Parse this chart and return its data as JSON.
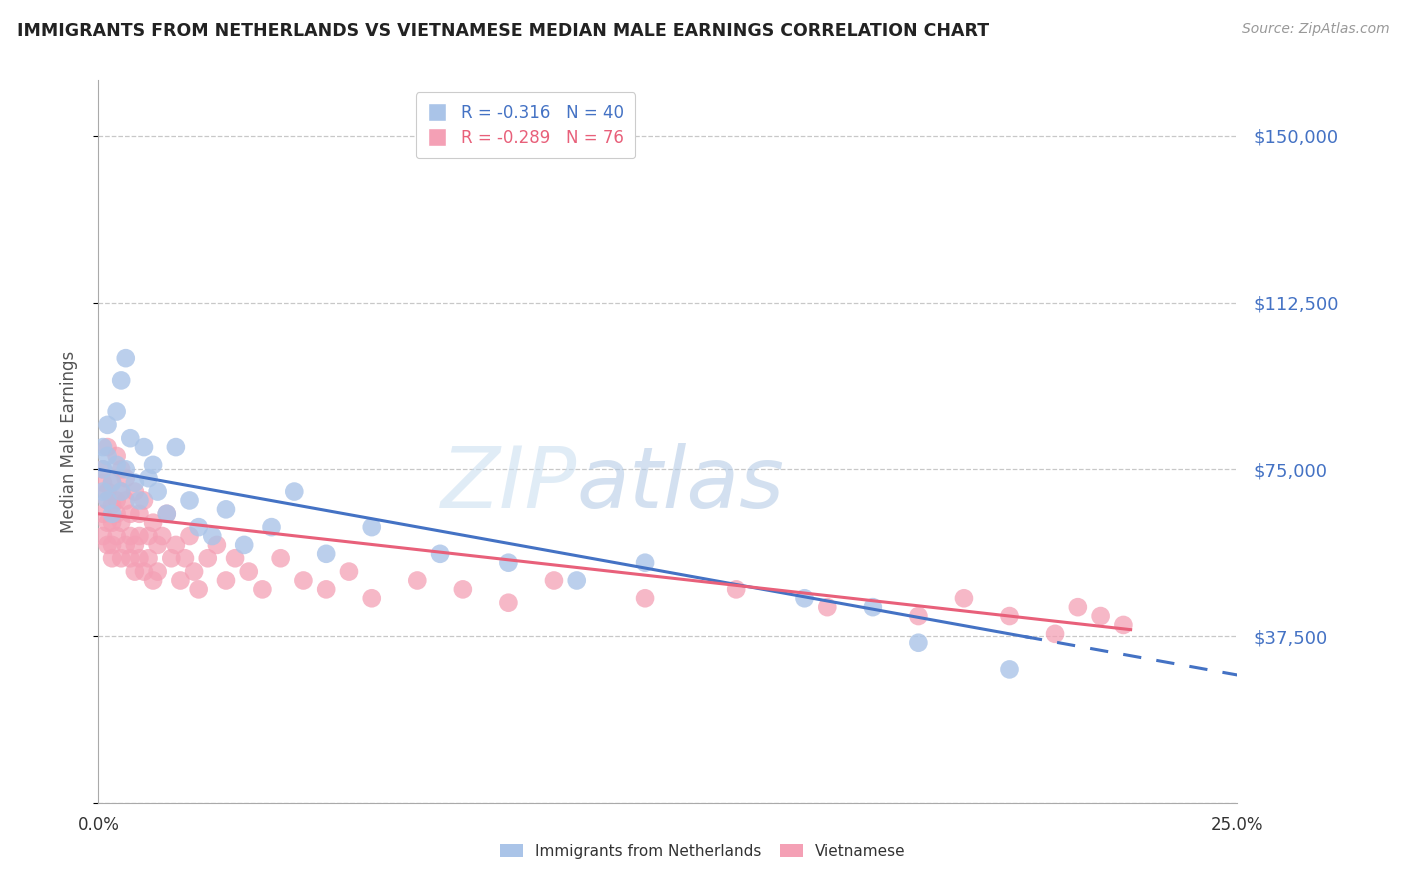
{
  "title": "IMMIGRANTS FROM NETHERLANDS VS VIETNAMESE MEDIAN MALE EARNINGS CORRELATION CHART",
  "source": "Source: ZipAtlas.com",
  "xlabel": "",
  "ylabel": "Median Male Earnings",
  "xlim": [
    0.0,
    0.25
  ],
  "ylim": [
    0,
    162500
  ],
  "yticks": [
    0,
    37500,
    75000,
    112500,
    150000
  ],
  "ytick_labels": [
    "",
    "$37,500",
    "$75,000",
    "$112,500",
    "$150,000"
  ],
  "xticks": [
    0.0,
    0.05,
    0.1,
    0.15,
    0.2,
    0.25
  ],
  "xtick_labels": [
    "0.0%",
    "",
    "",
    "",
    "",
    "25.0%"
  ],
  "watermark_zip": "ZIP",
  "watermark_atlas": "atlas",
  "background_color": "#ffffff",
  "grid_color": "#c8c8c8",
  "netherlands_color": "#aac4e8",
  "vietnamese_color": "#f4a0b5",
  "netherlands_line_color": "#4472c4",
  "vietnamese_line_color": "#e8607a",
  "netherlands_R": -0.316,
  "netherlands_N": 40,
  "vietnamese_R": -0.289,
  "vietnamese_N": 76,
  "legend_label_netherlands": "Immigrants from Netherlands",
  "legend_label_vietnamese": "Vietnamese",
  "title_color": "#222222",
  "axis_label_color": "#555555",
  "ytick_color": "#4472c4",
  "xtick_color": "#333333",
  "nl_intercept": 75000,
  "nl_slope": -185000,
  "vn_intercept": 65000,
  "vn_slope": -115000,
  "netherlands_x": [
    0.001,
    0.001,
    0.001,
    0.002,
    0.002,
    0.002,
    0.003,
    0.003,
    0.004,
    0.004,
    0.005,
    0.005,
    0.006,
    0.006,
    0.007,
    0.008,
    0.009,
    0.01,
    0.011,
    0.012,
    0.013,
    0.015,
    0.017,
    0.02,
    0.022,
    0.025,
    0.028,
    0.032,
    0.038,
    0.043,
    0.05,
    0.06,
    0.075,
    0.09,
    0.105,
    0.12,
    0.155,
    0.17,
    0.18,
    0.2
  ],
  "netherlands_y": [
    75000,
    80000,
    70000,
    78000,
    68000,
    85000,
    72000,
    65000,
    88000,
    76000,
    95000,
    70000,
    100000,
    75000,
    82000,
    72000,
    68000,
    80000,
    73000,
    76000,
    70000,
    65000,
    80000,
    68000,
    62000,
    60000,
    66000,
    58000,
    62000,
    70000,
    56000,
    62000,
    56000,
    54000,
    50000,
    54000,
    46000,
    44000,
    36000,
    30000
  ],
  "vietnamese_x": [
    0.001,
    0.001,
    0.001,
    0.001,
    0.002,
    0.002,
    0.002,
    0.002,
    0.002,
    0.003,
    0.003,
    0.003,
    0.003,
    0.003,
    0.004,
    0.004,
    0.004,
    0.004,
    0.005,
    0.005,
    0.005,
    0.005,
    0.006,
    0.006,
    0.006,
    0.007,
    0.007,
    0.007,
    0.008,
    0.008,
    0.008,
    0.009,
    0.009,
    0.009,
    0.01,
    0.01,
    0.011,
    0.011,
    0.012,
    0.012,
    0.013,
    0.013,
    0.014,
    0.015,
    0.016,
    0.017,
    0.018,
    0.019,
    0.02,
    0.021,
    0.022,
    0.024,
    0.026,
    0.028,
    0.03,
    0.033,
    0.036,
    0.04,
    0.045,
    0.05,
    0.055,
    0.06,
    0.07,
    0.08,
    0.09,
    0.1,
    0.12,
    0.14,
    0.16,
    0.18,
    0.19,
    0.2,
    0.21,
    0.215,
    0.22,
    0.225
  ],
  "vietnamese_y": [
    65000,
    72000,
    60000,
    75000,
    68000,
    58000,
    80000,
    63000,
    70000,
    67000,
    72000,
    58000,
    63000,
    55000,
    78000,
    65000,
    60000,
    68000,
    70000,
    55000,
    63000,
    75000,
    68000,
    58000,
    73000,
    65000,
    60000,
    55000,
    70000,
    58000,
    52000,
    65000,
    60000,
    55000,
    68000,
    52000,
    60000,
    55000,
    63000,
    50000,
    58000,
    52000,
    60000,
    65000,
    55000,
    58000,
    50000,
    55000,
    60000,
    52000,
    48000,
    55000,
    58000,
    50000,
    55000,
    52000,
    48000,
    55000,
    50000,
    48000,
    52000,
    46000,
    50000,
    48000,
    45000,
    50000,
    46000,
    48000,
    44000,
    42000,
    46000,
    42000,
    38000,
    44000,
    42000,
    40000
  ]
}
